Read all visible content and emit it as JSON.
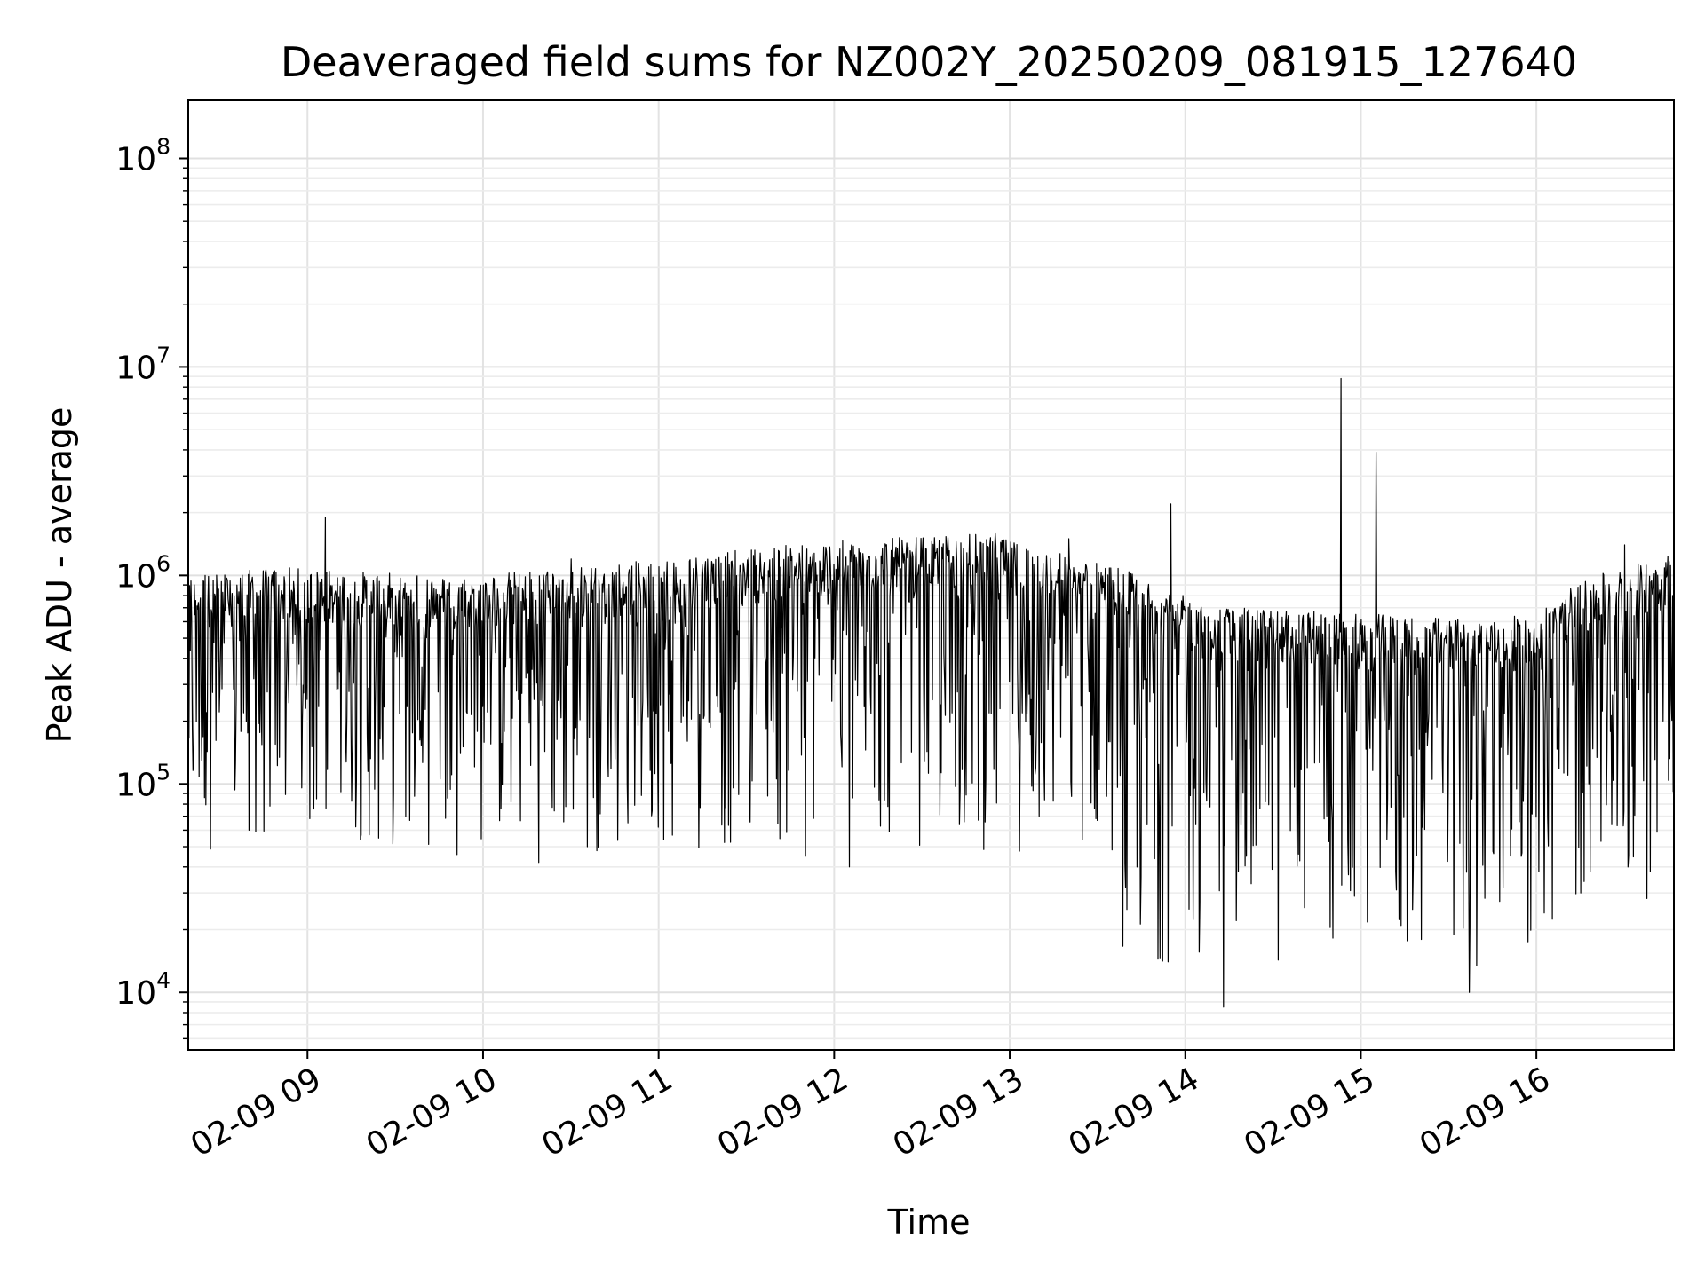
{
  "chart_data": {
    "type": "line",
    "title": "Deaveraged field sums for NZ002Y_20250209_081915_127640",
    "xlabel": "Time",
    "ylabel": "Peak ADU - average",
    "yscale": "log",
    "ylim": [
      5300,
      190000000
    ],
    "xlim": [
      "2025-02-09 08:19:15",
      "2025-02-09 16:47:00"
    ],
    "grid": true,
    "x_ticks": [
      "02-09 09",
      "02-09 10",
      "02-09 11",
      "02-09 12",
      "02-09 13",
      "02-09 14",
      "02-09 15",
      "02-09 16"
    ],
    "x_tick_times": [
      "2025-02-09 09:00",
      "2025-02-09 10:00",
      "2025-02-09 11:00",
      "2025-02-09 12:00",
      "2025-02-09 13:00",
      "2025-02-09 14:00",
      "2025-02-09 15:00",
      "2025-02-09 16:00"
    ],
    "y_ticks": [
      {
        "base": "10",
        "exp": "4",
        "value": 10000
      },
      {
        "base": "10",
        "exp": "5",
        "value": 100000
      },
      {
        "base": "10",
        "exp": "6",
        "value": 1000000
      },
      {
        "base": "10",
        "exp": "7",
        "value": 10000000
      },
      {
        "base": "10",
        "exp": "8",
        "value": 100000000
      }
    ],
    "series": [
      {
        "color": "#000000",
        "points": [
          {
            "x": "2025-02-09 08:19",
            "y": 200000
          },
          {
            "x": "2025-02-09 08:25",
            "y": 1000000
          },
          {
            "x": "2025-02-09 08:30",
            "y": 300000
          },
          {
            "x": "2025-02-09 08:40",
            "y": 60000
          },
          {
            "x": "2025-02-09 08:50",
            "y": 900000
          },
          {
            "x": "2025-02-09 09:06",
            "y": 1900000
          },
          {
            "x": "2025-02-09 09:30",
            "y": 800000
          },
          {
            "x": "2025-02-09 10:00",
            "y": 900000
          },
          {
            "x": "2025-02-09 10:19",
            "y": 42000
          },
          {
            "x": "2025-02-09 10:30",
            "y": 1200000
          },
          {
            "x": "2025-02-09 11:00",
            "y": 1100000
          },
          {
            "x": "2025-02-09 11:30",
            "y": 1000000
          },
          {
            "x": "2025-02-09 11:50",
            "y": 45000
          },
          {
            "x": "2025-02-09 12:05",
            "y": 40000
          },
          {
            "x": "2025-02-09 12:30",
            "y": 1300000
          },
          {
            "x": "2025-02-09 12:55",
            "y": 1600000
          },
          {
            "x": "2025-02-09 13:20",
            "y": 1500000
          },
          {
            "x": "2025-02-09 13:40",
            "y": 25000
          },
          {
            "x": "2025-02-09 13:55",
            "y": 2200000
          },
          {
            "x": "2025-02-09 14:13",
            "y": 8500
          },
          {
            "x": "2025-02-09 14:30",
            "y": 600000
          },
          {
            "x": "2025-02-09 14:53",
            "y": 8800000
          },
          {
            "x": "2025-02-09 15:05",
            "y": 3900000
          },
          {
            "x": "2025-02-09 15:30",
            "y": 400000
          },
          {
            "x": "2025-02-09 15:37",
            "y": 10000
          },
          {
            "x": "2025-02-09 16:00",
            "y": 500000
          },
          {
            "x": "2025-02-09 16:15",
            "y": 30000
          },
          {
            "x": "2025-02-09 16:30",
            "y": 1400000
          },
          {
            "x": "2025-02-09 16:47",
            "y": 1000000
          }
        ]
      }
    ]
  }
}
